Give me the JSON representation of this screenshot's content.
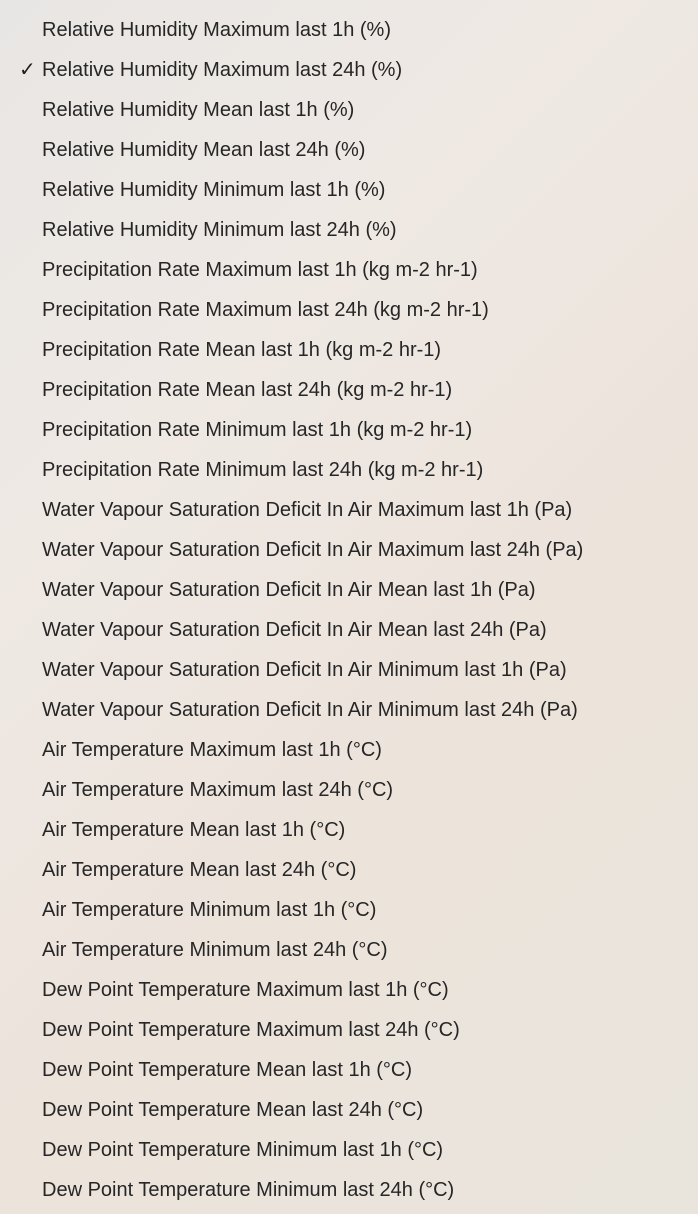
{
  "menu": {
    "check_glyph": "✓",
    "items": [
      {
        "label": "Relative Humidity Maximum last 1h (%)",
        "checked": false
      },
      {
        "label": "Relative Humidity Maximum last 24h (%)",
        "checked": true
      },
      {
        "label": "Relative Humidity Mean last 1h (%)",
        "checked": false
      },
      {
        "label": "Relative Humidity Mean last 24h (%)",
        "checked": false
      },
      {
        "label": "Relative Humidity Minimum last 1h (%)",
        "checked": false
      },
      {
        "label": "Relative Humidity Minimum last 24h (%)",
        "checked": false
      },
      {
        "label": "Precipitation Rate Maximum last 1h (kg m-2 hr-1)",
        "checked": false
      },
      {
        "label": "Precipitation Rate Maximum last 24h (kg m-2 hr-1)",
        "checked": false
      },
      {
        "label": "Precipitation Rate Mean last 1h (kg m-2 hr-1)",
        "checked": false
      },
      {
        "label": "Precipitation Rate Mean last 24h (kg m-2 hr-1)",
        "checked": false
      },
      {
        "label": "Precipitation Rate Minimum last 1h (kg m-2 hr-1)",
        "checked": false
      },
      {
        "label": "Precipitation Rate Minimum last 24h (kg m-2 hr-1)",
        "checked": false
      },
      {
        "label": "Water Vapour Saturation Deficit In Air Maximum last 1h (Pa)",
        "checked": false
      },
      {
        "label": "Water Vapour Saturation Deficit In Air Maximum last 24h (Pa)",
        "checked": false
      },
      {
        "label": "Water Vapour Saturation Deficit In Air Mean last 1h (Pa)",
        "checked": false
      },
      {
        "label": "Water Vapour Saturation Deficit In Air Mean last 24h (Pa)",
        "checked": false
      },
      {
        "label": "Water Vapour Saturation Deficit In Air Minimum last 1h (Pa)",
        "checked": false
      },
      {
        "label": "Water Vapour Saturation Deficit In Air Minimum last 24h (Pa)",
        "checked": false
      },
      {
        "label": "Air Temperature Maximum last 1h (°C)",
        "checked": false
      },
      {
        "label": "Air Temperature Maximum last 24h (°C)",
        "checked": false
      },
      {
        "label": "Air Temperature Mean last 1h (°C)",
        "checked": false
      },
      {
        "label": "Air Temperature Mean last 24h (°C)",
        "checked": false
      },
      {
        "label": "Air Temperature Minimum last 1h (°C)",
        "checked": false
      },
      {
        "label": "Air Temperature Minimum last 24h (°C)",
        "checked": false
      },
      {
        "label": "Dew Point Temperature Maximum last 1h (°C)",
        "checked": false
      },
      {
        "label": "Dew Point Temperature Maximum last 24h (°C)",
        "checked": false
      },
      {
        "label": "Dew Point Temperature Mean last 1h (°C)",
        "checked": false
      },
      {
        "label": "Dew Point Temperature Mean last 24h (°C)",
        "checked": false
      },
      {
        "label": "Dew Point Temperature Minimum last 1h (°C)",
        "checked": false
      },
      {
        "label": "Dew Point Temperature Minimum last 24h (°C)",
        "checked": false
      }
    ]
  }
}
